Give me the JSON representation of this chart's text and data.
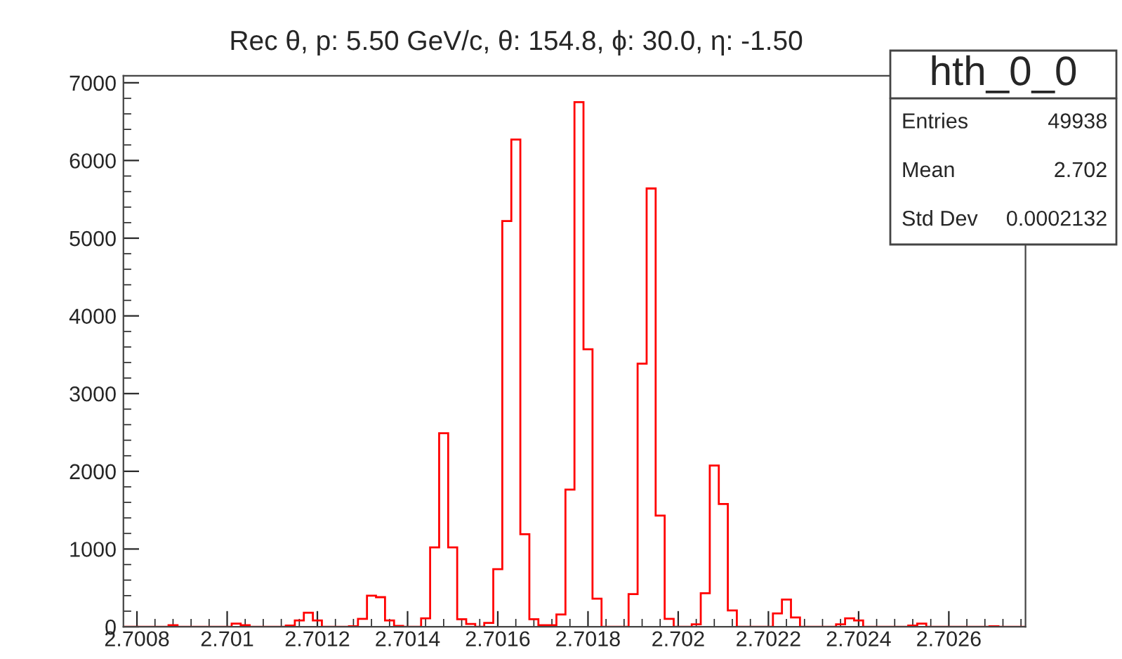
{
  "chart_data": {
    "type": "histogram",
    "title": "Rec θ, p: 5.50 GeV/c, θ: 154.8, ϕ: 30.0, η: -1.50",
    "bins": [
      2.70077,
      2.70079,
      2.70081,
      2.70083,
      2.70085,
      2.70087,
      2.70089,
      2.70091,
      2.70093,
      2.70095,
      2.70097,
      2.70099,
      2.70101,
      2.70103,
      2.70105,
      2.70107,
      2.70109,
      2.70111,
      2.70113,
      2.70115,
      2.70117,
      2.70119,
      2.70121,
      2.70123,
      2.70125,
      2.70127,
      2.70129,
      2.70131,
      2.70133,
      2.70135,
      2.70137,
      2.70139,
      2.70141,
      2.70143,
      2.70145,
      2.70147,
      2.70149,
      2.70151,
      2.70153,
      2.70155,
      2.70157,
      2.70159,
      2.70161,
      2.70163,
      2.70165,
      2.70167,
      2.70169,
      2.70171,
      2.70173,
      2.70175,
      2.70177,
      2.70179,
      2.70181,
      2.70183,
      2.70185,
      2.70187,
      2.70189,
      2.70191,
      2.70193,
      2.70195,
      2.70197,
      2.70199,
      2.70201,
      2.70203,
      2.70205,
      2.70207,
      2.70209,
      2.70211,
      2.70213,
      2.70215,
      2.70217,
      2.70219,
      2.70221,
      2.70223,
      2.70225,
      2.70227,
      2.70229,
      2.70231,
      2.70233,
      2.70235,
      2.70237,
      2.70239,
      2.70241,
      2.70243,
      2.70245,
      2.70247,
      2.70249,
      2.70251,
      2.70253,
      2.70255,
      2.70257,
      2.70259,
      2.70261,
      2.70263,
      2.70265,
      2.70267,
      2.70269,
      2.70271,
      2.70273,
      2.70275,
      2.70277
    ],
    "values": [
      0,
      0,
      0,
      0,
      0,
      20,
      0,
      0,
      0,
      0,
      0,
      0,
      40,
      20,
      0,
      0,
      0,
      0,
      15,
      80,
      180,
      80,
      0,
      0,
      0,
      5,
      100,
      400,
      380,
      80,
      10,
      0,
      0,
      108,
      1020,
      2490,
      1020,
      96,
      36,
      0,
      48,
      740,
      5220,
      6270,
      1190,
      96,
      20,
      20,
      157,
      1765,
      6750,
      3570,
      360,
      0,
      0,
      0,
      420,
      3385,
      5640,
      1430,
      100,
      0,
      0,
      30,
      430,
      2075,
      1580,
      210,
      0,
      0,
      0,
      0,
      170,
      350,
      120,
      0,
      0,
      0,
      0,
      30,
      108,
      80,
      0,
      0,
      0,
      0,
      0,
      15,
      40,
      0,
      0,
      0,
      0,
      0,
      0,
      0,
      5,
      0,
      0,
      0
    ],
    "color": "#ff0000",
    "xlim": [
      2.70077,
      2.70277
    ],
    "xticks": [
      {
        "value": 2.7008,
        "label": "2.7008"
      },
      {
        "value": 2.701,
        "label": "2.701"
      },
      {
        "value": 2.7012,
        "label": "2.7012"
      },
      {
        "value": 2.7014,
        "label": "2.7014"
      },
      {
        "value": 2.7016,
        "label": "2.7016"
      },
      {
        "value": 2.7018,
        "label": "2.7018"
      },
      {
        "value": 2.702,
        "label": "2.702"
      },
      {
        "value": 2.7022,
        "label": "2.7022"
      },
      {
        "value": 2.7024,
        "label": "2.7024"
      },
      {
        "value": 2.7026,
        "label": "2.7026"
      }
    ],
    "ylim": [
      0,
      7090
    ],
    "yticks": [
      0,
      1000,
      2000,
      3000,
      4000,
      5000,
      6000,
      7000
    ],
    "annotations": [
      "hth_0_0",
      "Entries",
      "49938",
      "Mean",
      "2.702",
      "Std Dev",
      "0.0002132"
    ]
  }
}
